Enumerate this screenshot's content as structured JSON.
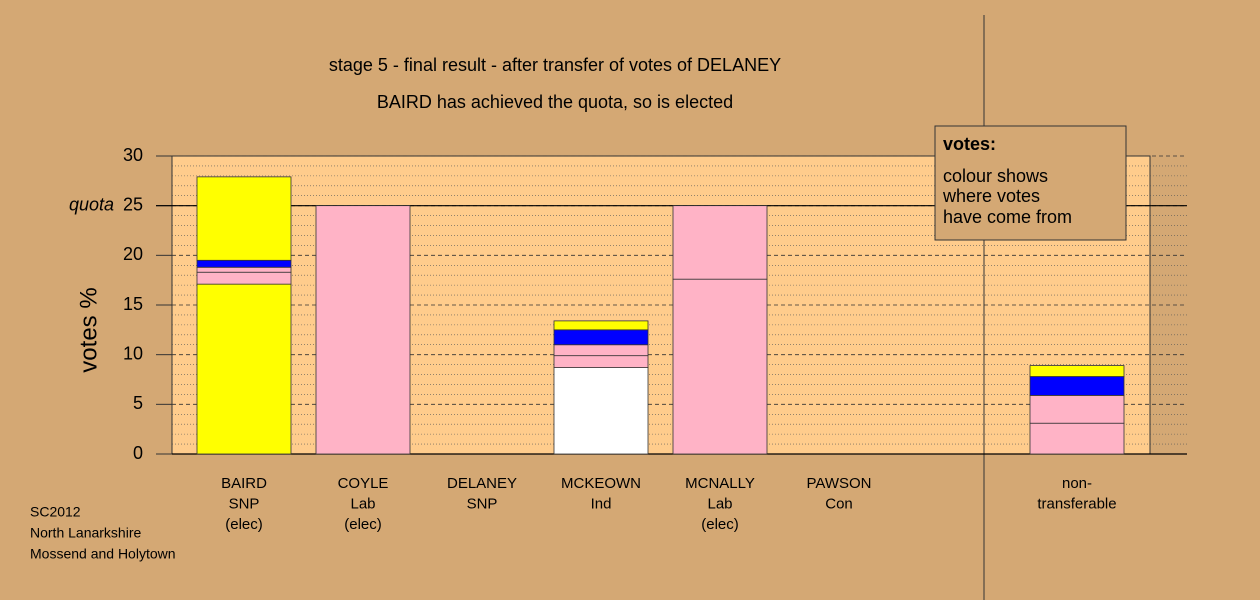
{
  "chart_data": {
    "type": "stacked-bar",
    "title": "stage 5 - final result - after transfer of votes of DELANEY",
    "subtitle": "BAIRD has achieved the quota, so is elected",
    "y_label": "votes %",
    "categories": [
      [
        "BAIRD",
        "SNP",
        "(elec)"
      ],
      [
        "COYLE",
        "Lab",
        "(elec)"
      ],
      [
        "DELANEY",
        "SNP"
      ],
      [
        "MCKEOWN",
        "Ind"
      ],
      [
        "MCNALLY",
        "Lab",
        "(elec)"
      ],
      [
        "PAWSON",
        "Con"
      ],
      [
        "non-",
        "transferable"
      ]
    ],
    "stacks": [
      [
        {
          "value": 17.1,
          "color": "#ffff00"
        },
        {
          "value": 1.2,
          "color": "#ffb3c6"
        },
        {
          "value": 0.5,
          "color": "#ffb3c6"
        },
        {
          "value": 0.7,
          "color": "#0000ff"
        },
        {
          "value": 8.4,
          "color": "#ffff00"
        }
      ],
      [
        {
          "value": 25.0,
          "color": "#ffb3c6"
        }
      ],
      [],
      [
        {
          "value": 8.7,
          "color": "#ffffff"
        },
        {
          "value": 1.2,
          "color": "#ffb3c6"
        },
        {
          "value": 1.1,
          "color": "#ffb3c6"
        },
        {
          "value": 1.5,
          "color": "#0000ff"
        },
        {
          "value": 0.9,
          "color": "#ffff00"
        }
      ],
      [
        {
          "value": 17.6,
          "color": "#ffb3c6"
        },
        {
          "value": 7.4,
          "color": "#ffb3c6"
        }
      ],
      [],
      [
        {
          "value": 3.1,
          "color": "#ffb3c6"
        },
        {
          "value": 2.8,
          "color": "#ffb3c6"
        },
        {
          "value": 1.9,
          "color": "#0000ff"
        },
        {
          "value": 1.1,
          "color": "#ffff00"
        }
      ]
    ],
    "ylim": [
      0,
      30
    ],
    "yticks": [
      0,
      5,
      10,
      15,
      20,
      25,
      30
    ],
    "minor_yticks": [
      1,
      2,
      3,
      4,
      6,
      7,
      8,
      9,
      11,
      12,
      13,
      14,
      16,
      17,
      18,
      19,
      21,
      22,
      23,
      24,
      26,
      27,
      28,
      29
    ],
    "quota": {
      "value": 25,
      "label": "quota"
    },
    "legend_box": {
      "title": "votes:",
      "lines": [
        "colour shows",
        "where votes",
        "have come from"
      ]
    },
    "notes": [
      "SC2012",
      "North Lanarkshire",
      "Mossend and Holytown"
    ]
  }
}
